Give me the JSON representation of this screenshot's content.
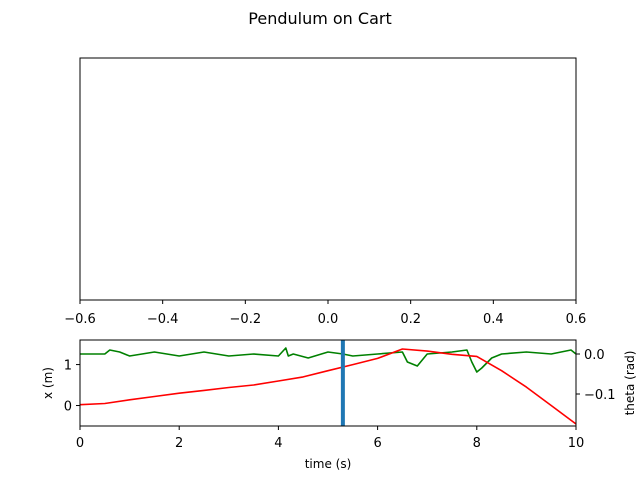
{
  "chart_data": [
    {
      "type": "scatter",
      "title": "Pendulum on Cart",
      "xlim": [
        -0.6,
        0.6
      ],
      "x_ticks": [
        "−0.6",
        "−0.4",
        "−0.2",
        "0.0",
        "0.2",
        "0.4",
        "0.6"
      ],
      "y_ticks_visible": false,
      "series": []
    },
    {
      "type": "line",
      "xlabel": "time (s)",
      "ylabel": "x (m)",
      "y2label": "theta (rad)",
      "xlim": [
        0,
        10
      ],
      "ylim": [
        -0.5,
        1.6
      ],
      "y2lim": [
        -0.18,
        0.035
      ],
      "x_ticks": [
        "0",
        "2",
        "4",
        "6",
        "8",
        "10"
      ],
      "y_ticks": [
        "0",
        "1"
      ],
      "y2_ticks": [
        "0.0",
        "−0.1"
      ],
      "current_time": 5.3,
      "colors": {
        "x": "#ff0000",
        "theta": "#008000",
        "marker": "#1f77b4"
      },
      "series": [
        {
          "axis": "left",
          "x": [
            0,
            0.5,
            1,
            1.5,
            2,
            2.5,
            3,
            3.5,
            4,
            4.5,
            5,
            5.5,
            6,
            6.5,
            7,
            7.5,
            8,
            8.5,
            9,
            9.5,
            10
          ],
          "values": [
            0.02,
            0.05,
            0.14,
            0.22,
            0.3,
            0.37,
            0.44,
            0.5,
            0.6,
            0.7,
            0.85,
            1.0,
            1.15,
            1.38,
            1.33,
            1.25,
            1.2,
            0.85,
            0.45,
            0.0,
            -0.45
          ]
        },
        {
          "axis": "right",
          "x": [
            0,
            0.5,
            0.6,
            0.8,
            1,
            1.5,
            2,
            2.5,
            3,
            3.5,
            4,
            4.15,
            4.2,
            4.3,
            4.6,
            5,
            5.3,
            5.5,
            6,
            6.5,
            6.6,
            6.8,
            7,
            7.5,
            7.8,
            7.9,
            8,
            8.1,
            8.3,
            8.5,
            9,
            9.5,
            9.9,
            10
          ],
          "values": [
            0.0,
            0.0,
            0.01,
            0.005,
            -0.005,
            0.005,
            -0.005,
            0.005,
            -0.005,
            0.0,
            -0.005,
            0.015,
            -0.005,
            0.0,
            -0.01,
            0.005,
            0.0,
            -0.005,
            0.0,
            0.005,
            -0.02,
            -0.03,
            0.0,
            0.005,
            0.01,
            -0.02,
            -0.045,
            -0.035,
            -0.01,
            0.0,
            0.005,
            0.0,
            0.01,
            0.0
          ]
        }
      ]
    }
  ]
}
